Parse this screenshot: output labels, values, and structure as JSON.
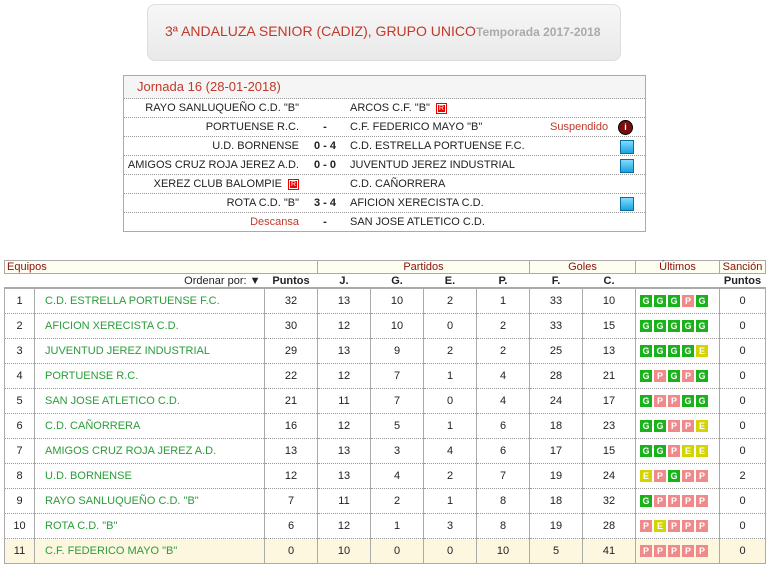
{
  "header": {
    "title": "3ª ANDALUZA SENIOR (CADIZ), GRUPO UNICO",
    "season": "Temporada 2017-2018"
  },
  "jornada": {
    "title": "Jornada 16 (28-01-2018)",
    "matches": [
      {
        "home": "RAYO SANLUQUEÑO C.D. \"B\"",
        "score": "",
        "away": "ARCOS C.F. \"B\"",
        "away_badge": "R"
      },
      {
        "home": "PORTUENSE R.C.",
        "score": "-",
        "away": "C.F. FEDERICO MAYO \"B\"",
        "status": "Suspendido",
        "icon": "info"
      },
      {
        "home": "U.D. BORNENSE",
        "score": "0 - 4",
        "away": "C.D. ESTRELLA PORTUENSE F.C.",
        "icon": "report"
      },
      {
        "home": "AMIGOS CRUZ ROJA JEREZ A.D.",
        "score": "0 - 0",
        "away": "JUVENTUD JEREZ INDUSTRIAL",
        "icon": "report"
      },
      {
        "home": "XEREZ CLUB BALOMPIE",
        "home_badge": "R",
        "score": "",
        "away": "C.D. CAÑORRERA"
      },
      {
        "home": "ROTA C.D. \"B\"",
        "score": "3 - 4",
        "away": "AFICION XERECISTA C.D.",
        "icon": "report"
      },
      {
        "home": "Descansa",
        "score": "-",
        "away": "SAN JOSE ATLETICO C.D.",
        "home_red": true
      }
    ]
  },
  "standings": {
    "groups": {
      "equipos": "Equipos",
      "partidos": "Partidos",
      "goles": "Goles",
      "ultimos": "Últimos",
      "sancion": "Sanción"
    },
    "columns": {
      "order_by": "Ordenar por:",
      "puntos": "Puntos",
      "j": "J.",
      "g": "G.",
      "e": "E.",
      "p": "P.",
      "f": "F.",
      "c": "C.",
      "sancion_puntos": "Puntos"
    },
    "rows": [
      {
        "pos": "1",
        "team": "C.D. ESTRELLA PORTUENSE F.C.",
        "pts": "32",
        "j": "13",
        "g": "10",
        "e": "2",
        "p": "1",
        "f": "33",
        "c": "10",
        "last": [
          "G",
          "G",
          "G",
          "P",
          "G"
        ],
        "san": "0"
      },
      {
        "pos": "2",
        "team": "AFICION XERECISTA C.D.",
        "pts": "30",
        "j": "12",
        "g": "10",
        "e": "0",
        "p": "2",
        "f": "33",
        "c": "15",
        "last": [
          "G",
          "G",
          "G",
          "G",
          "G"
        ],
        "san": "0"
      },
      {
        "pos": "3",
        "team": "JUVENTUD JEREZ INDUSTRIAL",
        "pts": "29",
        "j": "13",
        "g": "9",
        "e": "2",
        "p": "2",
        "f": "25",
        "c": "13",
        "last": [
          "G",
          "G",
          "G",
          "G",
          "E"
        ],
        "san": "0"
      },
      {
        "pos": "4",
        "team": "PORTUENSE R.C.",
        "pts": "22",
        "j": "12",
        "g": "7",
        "e": "1",
        "p": "4",
        "f": "28",
        "c": "21",
        "last": [
          "G",
          "P",
          "G",
          "P",
          "G"
        ],
        "san": "0"
      },
      {
        "pos": "5",
        "team": "SAN JOSE ATLETICO C.D.",
        "pts": "21",
        "j": "11",
        "g": "7",
        "e": "0",
        "p": "4",
        "f": "24",
        "c": "17",
        "last": [
          "G",
          "P",
          "P",
          "G",
          "G"
        ],
        "san": "0"
      },
      {
        "pos": "6",
        "team": "C.D. CAÑORRERA",
        "pts": "16",
        "j": "12",
        "g": "5",
        "e": "1",
        "p": "6",
        "f": "18",
        "c": "23",
        "last": [
          "G",
          "G",
          "P",
          "P",
          "E"
        ],
        "san": "0"
      },
      {
        "pos": "7",
        "team": "AMIGOS CRUZ ROJA JEREZ A.D.",
        "pts": "13",
        "j": "13",
        "g": "3",
        "e": "4",
        "p": "6",
        "f": "17",
        "c": "15",
        "last": [
          "G",
          "G",
          "P",
          "E",
          "E"
        ],
        "san": "0"
      },
      {
        "pos": "8",
        "team": "U.D. BORNENSE",
        "pts": "12",
        "j": "13",
        "g": "4",
        "e": "2",
        "p": "7",
        "f": "19",
        "c": "24",
        "last": [
          "E",
          "P",
          "G",
          "P",
          "P"
        ],
        "san": "2"
      },
      {
        "pos": "9",
        "team": "RAYO SANLUQUEÑO C.D. \"B\"",
        "pts": "7",
        "j": "11",
        "g": "2",
        "e": "1",
        "p": "8",
        "f": "18",
        "c": "32",
        "last": [
          "G",
          "P",
          "P",
          "P",
          "P"
        ],
        "san": "0"
      },
      {
        "pos": "10",
        "team": "ROTA C.D. \"B\"",
        "pts": "6",
        "j": "12",
        "g": "1",
        "e": "3",
        "p": "8",
        "f": "19",
        "c": "28",
        "last": [
          "P",
          "E",
          "P",
          "P",
          "P"
        ],
        "san": "0"
      },
      {
        "pos": "11",
        "team": "C.F. FEDERICO MAYO \"B\"",
        "pts": "0",
        "j": "10",
        "g": "0",
        "e": "0",
        "p": "10",
        "f": "5",
        "c": "41",
        "last": [
          "P",
          "P",
          "P",
          "P",
          "P"
        ],
        "san": "0"
      }
    ]
  },
  "colors": {
    "win": "#1ab21a",
    "loss": "#f08a8a",
    "draw": "#d4d400",
    "title": "#c0392b",
    "team": "#2a9d3a"
  }
}
